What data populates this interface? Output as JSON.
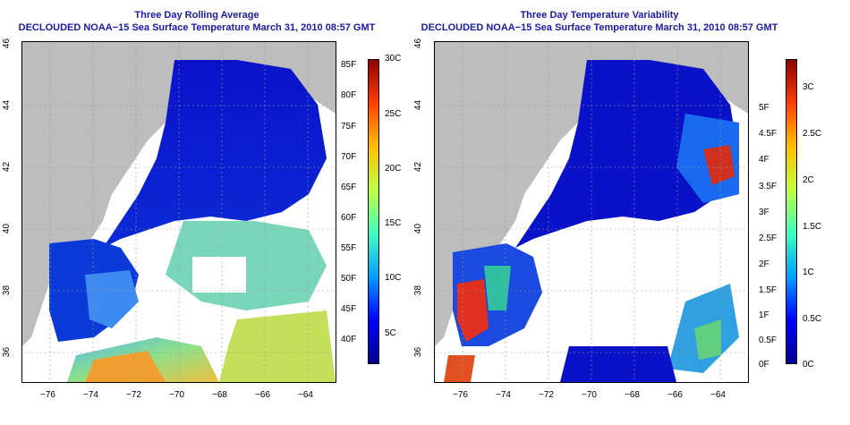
{
  "panels": [
    {
      "title": "Three Day Rolling Average",
      "subtitle": "DECLOUDED NOAA−15 Sea Surface Temperature March 31, 2010 08:57 GMT",
      "colorbar_f_labels": [
        "85F",
        "80F",
        "75F",
        "70F",
        "65F",
        "60F",
        "55F",
        "50F",
        "45F",
        "40F"
      ],
      "colorbar_c_labels": [
        "30C",
        "25C",
        "20C",
        "15C",
        "10C",
        "5C"
      ]
    },
    {
      "title": "Three Day Temperature Variability",
      "subtitle": "DECLOUDED NOAA−15 Sea Surface Temperature March 31, 2010 08:57 GMT",
      "colorbar_f_labels": [
        "5F",
        "4.5F",
        "4F",
        "3.5F",
        "3F",
        "2.5F",
        "2F",
        "1.5F",
        "1F",
        "0.5F",
        "0F"
      ],
      "colorbar_c_labels": [
        "3C",
        "2.5C",
        "2C",
        "1.5C",
        "1C",
        "0.5C",
        "0C"
      ]
    }
  ],
  "axes": {
    "lon_labels": [
      "−76",
      "−74",
      "−72",
      "−70",
      "−68",
      "−66",
      "−64"
    ],
    "lat_labels": [
      "46",
      "44",
      "42",
      "40",
      "38",
      "36"
    ]
  },
  "colors": {
    "title": "#1a1aa6",
    "land": "#bdbdbd",
    "cloud_mask": "#ffffff"
  }
}
